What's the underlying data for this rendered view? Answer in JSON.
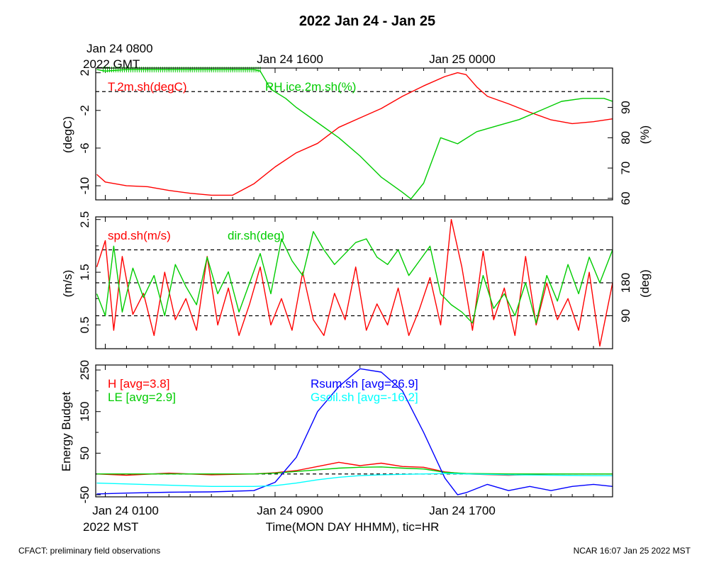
{
  "title": "2022 Jan 24 - Jan 25",
  "top_axis": {
    "labels": [
      "Jan 24 0800",
      "Jan 24 1600",
      "Jan 25 0000"
    ],
    "sublabel": "2022 GMT"
  },
  "bottom_axis": {
    "labels": [
      "Jan 24 0100",
      "Jan 24 0900",
      "Jan 24 1700"
    ],
    "sublabel": "2022 MST",
    "xlabel": "Time(MON DAY HHMM), tic=HR"
  },
  "footer": {
    "left": "CFACT: preliminary field observations",
    "right": "NCAR 16:07 Jan 25 2022 MST"
  },
  "colors": {
    "red": "#ff0000",
    "green": "#00cc00",
    "blue": "#0000ff",
    "cyan": "#00ffff"
  },
  "chart_data": [
    {
      "type": "line",
      "panel": "temperature-humidity",
      "x_unit": "hours since Jan 24 0000 MST",
      "xlim": [
        0.55,
        24.9
      ],
      "left_axis": {
        "label": "(degC)",
        "ylim": [
          -11.5,
          2.5
        ],
        "ticks": [
          2,
          -2,
          -6,
          -10
        ]
      },
      "right_axis": {
        "label": "(%)",
        "ylim": [
          59.5,
          103
        ],
        "ticks": [
          60,
          70,
          80,
          90
        ]
      },
      "reference_lines": [
        {
          "axis": "left",
          "value": 0
        }
      ],
      "series": [
        {
          "name": "T.2m.sh(degC)",
          "axis": "left",
          "color": "#ff0000",
          "x": [
            0.6,
            1,
            2,
            3,
            4,
            5,
            6,
            7,
            8,
            9,
            10,
            11,
            12,
            13,
            14,
            15,
            16,
            17,
            17.6,
            18,
            18.5,
            19,
            20,
            21,
            22,
            23,
            24,
            24.9
          ],
          "y": [
            -8.8,
            -9.6,
            -10.0,
            -10.1,
            -10.5,
            -10.8,
            -11.0,
            -11.0,
            -9.8,
            -8.0,
            -6.5,
            -5.5,
            -3.8,
            -2.8,
            -1.8,
            -0.5,
            0.6,
            1.6,
            2.0,
            1.8,
            0.5,
            -0.5,
            -1.3,
            -2.2,
            -3.0,
            -3.4,
            -3.2,
            -2.9
          ]
        },
        {
          "name": "RH.ice.2m.sh(%)",
          "axis": "right",
          "color": "#00cc00",
          "x": [
            0.6,
            1,
            2,
            3,
            4,
            5,
            6,
            7,
            8,
            8.3,
            8.8,
            9.5,
            10,
            11,
            12,
            13,
            14,
            15,
            15.4,
            16,
            16.8,
            17.6,
            18.5,
            19.5,
            20.5,
            21.5,
            22.5,
            23.5,
            24.5,
            24.9
          ],
          "y": [
            102.5,
            102,
            102.5,
            102.5,
            102.5,
            102.5,
            102.5,
            102.5,
            102.5,
            102,
            96,
            93,
            90,
            85,
            80,
            74,
            67,
            62,
            59.8,
            65,
            80,
            78,
            82,
            84,
            86,
            89,
            92,
            93,
            93,
            92
          ],
          "sat_markers": {
            "x_range": [
              0.9,
              8.3
            ],
            "y": 102.5
          }
        }
      ]
    },
    {
      "type": "line",
      "panel": "wind",
      "x_unit": "hours since Jan 24 0000 MST",
      "xlim": [
        0.55,
        24.9
      ],
      "left_axis": {
        "label": "(m/s)",
        "ylim": [
          0.05,
          2.55
        ],
        "ticks": [
          2.5,
          1.5,
          0.5
        ],
        "minor_ticks": [
          2.0,
          1.0
        ]
      },
      "right_axis": {
        "label": "(deg)",
        "ylim": [
          0,
          360
        ],
        "ticks": [
          180,
          90
        ],
        "minor_ticks": [
          270
        ]
      },
      "reference_lines": [
        {
          "axis": "right",
          "value": 270
        },
        {
          "axis": "right",
          "value": 180
        },
        {
          "axis": "right",
          "value": 90
        }
      ],
      "series": [
        {
          "name": "spd.sh(m/s)",
          "axis": "left",
          "color": "#ff0000",
          "x": [
            0.6,
            1,
            1.4,
            1.8,
            2.3,
            2.8,
            3.3,
            3.8,
            4.3,
            4.8,
            5.3,
            5.8,
            6.3,
            6.8,
            7.3,
            7.8,
            8.3,
            8.8,
            9.3,
            9.8,
            10.3,
            10.8,
            11.3,
            11.8,
            12.3,
            12.8,
            13.3,
            13.8,
            14.3,
            14.8,
            15.3,
            15.8,
            16.3,
            16.8,
            17.3,
            17.8,
            18.3,
            18.8,
            19.3,
            19.8,
            20.3,
            20.8,
            21.3,
            21.8,
            22.3,
            22.8,
            23.3,
            23.8,
            24.3,
            24.9
          ],
          "y": [
            1.6,
            2.1,
            0.4,
            1.8,
            0.7,
            1.1,
            0.3,
            1.5,
            0.6,
            1.0,
            0.4,
            1.8,
            0.5,
            1.2,
            0.3,
            0.9,
            1.6,
            0.5,
            1.0,
            0.4,
            1.5,
            0.6,
            0.3,
            1.1,
            0.6,
            1.6,
            0.4,
            0.9,
            0.5,
            1.2,
            0.3,
            0.8,
            1.4,
            0.5,
            2.5,
            1.6,
            0.4,
            1.9,
            0.6,
            1.2,
            0.3,
            1.8,
            0.5,
            1.3,
            0.6,
            1.0,
            0.4,
            1.5,
            0.1,
            1.3
          ]
        },
        {
          "name": "dir.sh(deg)",
          "axis": "right",
          "color": "#00cc00",
          "x": [
            0.6,
            1,
            1.4,
            1.8,
            2.3,
            2.8,
            3.3,
            3.8,
            4.3,
            4.8,
            5.3,
            5.8,
            6.3,
            6.8,
            7.3,
            7.8,
            8.3,
            8.8,
            9.3,
            9.8,
            10.3,
            10.8,
            11.3,
            11.8,
            12.3,
            12.8,
            13.3,
            13.8,
            14.3,
            14.8,
            15.3,
            15.8,
            16.3,
            16.8,
            17.3,
            17.8,
            18.3,
            18.8,
            19.3,
            19.8,
            20.3,
            20.8,
            21.3,
            21.8,
            22.3,
            22.8,
            23.3,
            23.8,
            24.3,
            24.9
          ],
          "y": [
            150,
            90,
            280,
            100,
            220,
            140,
            200,
            90,
            230,
            170,
            120,
            250,
            150,
            210,
            100,
            180,
            260,
            150,
            300,
            240,
            200,
            320,
            270,
            230,
            260,
            290,
            300,
            250,
            230,
            270,
            200,
            240,
            280,
            150,
            120,
            100,
            70,
            200,
            110,
            150,
            90,
            180,
            70,
            200,
            130,
            230,
            150,
            250,
            180,
            270
          ]
        }
      ]
    },
    {
      "type": "line",
      "panel": "energy-budget",
      "x_unit": "hours since Jan 24 0000 MST",
      "xlim": [
        0.55,
        24.9
      ],
      "left_axis": {
        "label": "Energy Budget",
        "ylim": [
          -55,
          262
        ],
        "ticks": [
          250,
          150,
          50,
          -50
        ],
        "minor_ticks": [
          200,
          100,
          0
        ]
      },
      "reference_lines": [
        {
          "axis": "left",
          "value": 0
        }
      ],
      "series": [
        {
          "name": "H",
          "avg_label": "H [avg=3.8]",
          "color": "#ff0000",
          "x": [
            0.6,
            2,
            4,
            6,
            8,
            9,
            10,
            11,
            12,
            13,
            14,
            15,
            16,
            17,
            18,
            20,
            22,
            24,
            24.9
          ],
          "y": [
            0,
            -3,
            2,
            -2,
            0,
            3,
            8,
            18,
            28,
            20,
            26,
            18,
            16,
            5,
            0,
            -3,
            0,
            0,
            0
          ]
        },
        {
          "name": "LE",
          "avg_label": "LE [avg=2.9]",
          "color": "#00cc00",
          "x": [
            0.6,
            2,
            4,
            6,
            8,
            9,
            10,
            11,
            12,
            13,
            14,
            15,
            16,
            17,
            18,
            20,
            22,
            24,
            24.9
          ],
          "y": [
            0,
            0,
            0,
            0,
            0,
            2,
            6,
            10,
            14,
            16,
            17,
            14,
            12,
            4,
            1,
            0,
            0,
            0,
            0
          ]
        },
        {
          "name": "Rsum.sh",
          "avg_label": "Rsum.sh [avg=26.9]",
          "color": "#0000ff",
          "x": [
            0.6,
            2,
            4,
            6,
            8,
            9,
            10,
            11,
            12,
            13,
            14,
            15,
            16,
            17,
            17.6,
            18,
            19,
            20,
            21,
            22,
            23,
            24,
            24.9
          ],
          "y": [
            -48,
            -46,
            -44,
            -43,
            -40,
            -20,
            40,
            150,
            210,
            253,
            245,
            200,
            100,
            -10,
            -50,
            -45,
            -25,
            -40,
            -30,
            -40,
            -30,
            -25,
            -30
          ]
        },
        {
          "name": "Gsoil.sh",
          "avg_label": "Gsoil.sh [avg=-16.2]",
          "color": "#00ffff",
          "x": [
            0.6,
            2,
            4,
            6,
            8,
            9,
            10,
            11,
            12,
            13,
            14,
            15,
            16,
            17,
            18,
            20,
            22,
            24,
            24.9
          ],
          "y": [
            -22,
            -24,
            -27,
            -30,
            -30,
            -28,
            -22,
            -14,
            -8,
            -4,
            -2,
            -1,
            0,
            1,
            0,
            -2,
            -3,
            -4,
            -4
          ]
        }
      ]
    }
  ]
}
